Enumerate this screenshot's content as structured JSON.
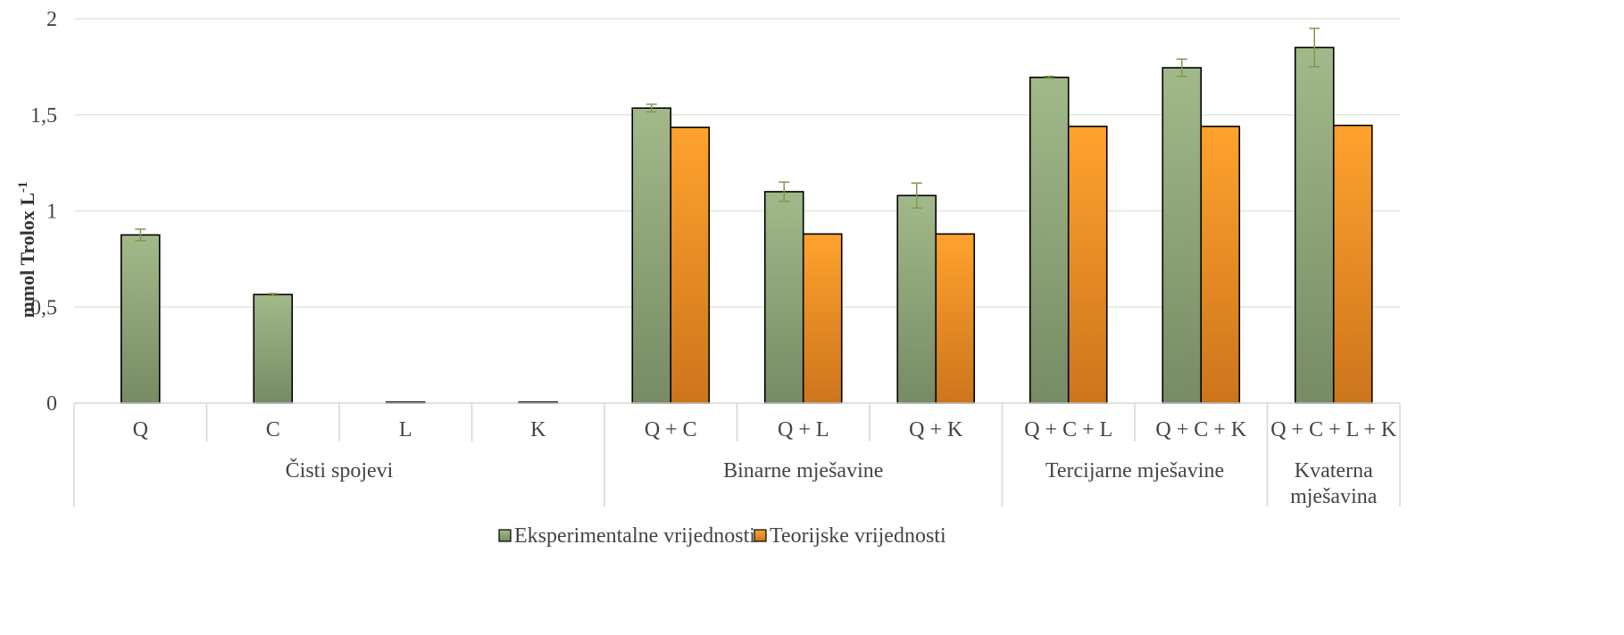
{
  "chart_data": {
    "type": "bar",
    "ylabel": "mmol Trolox L",
    "ylabel_superscript": "-1",
    "ylim": [
      0,
      2
    ],
    "yticks": [
      "0",
      "0,5",
      "1",
      "1,5",
      "2"
    ],
    "ytick_values": [
      0,
      0.5,
      1,
      1.5,
      2
    ],
    "grid": true,
    "legend_position": "bottom-center",
    "categories": [
      "Q",
      "C",
      "L",
      "K",
      "Q + C",
      "Q + L",
      "Q + K",
      "Q + C + L",
      "Q + C + K",
      "Q + C + L + K"
    ],
    "groups": [
      {
        "label_lines": [
          "Čisti spojevi"
        ],
        "span": [
          0,
          3
        ]
      },
      {
        "label_lines": [
          "Binarne mješavine"
        ],
        "span": [
          4,
          6
        ]
      },
      {
        "label_lines": [
          "Tercijarne mješavine"
        ],
        "span": [
          7,
          8
        ]
      },
      {
        "label_lines": [
          "Kvaterna",
          "mješavina"
        ],
        "span": [
          9,
          9
        ]
      }
    ],
    "series": [
      {
        "name": "Eksperimentalne vrijednosti",
        "color_top": "#a2b98a",
        "color_bottom": "#778b64",
        "values": [
          0.875,
          0.565,
          0.005,
          0.005,
          1.535,
          1.1,
          1.08,
          1.695,
          1.745,
          1.85
        ],
        "errors": [
          0.03,
          0.005,
          0.0,
          0.0,
          0.02,
          0.05,
          0.065,
          0.005,
          0.045,
          0.1
        ]
      },
      {
        "name": "Teorijske vrijednosti",
        "color_top": "#ffa22e",
        "color_bottom": "#cc751c",
        "values": [
          null,
          null,
          null,
          null,
          1.435,
          0.88,
          0.88,
          1.44,
          1.44,
          1.445
        ]
      }
    ]
  },
  "colors": {
    "grid": "#e3e8d6",
    "axis": "#d6d6d6",
    "error_bar": "#7e9a4a",
    "bar_outline": "#000000"
  }
}
